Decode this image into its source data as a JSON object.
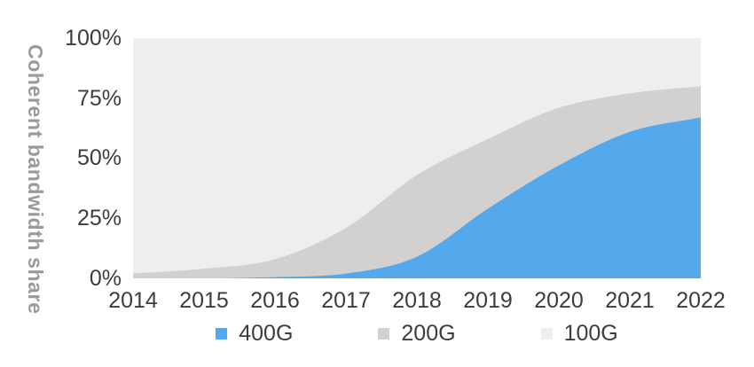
{
  "chart_data": {
    "type": "area",
    "stacked": true,
    "percent_stacked": true,
    "title": "",
    "xlabel": "",
    "ylabel": "Coherent bandwidth share",
    "categories": [
      "2014",
      "2015",
      "2016",
      "2017",
      "2018",
      "2019",
      "2020",
      "2021",
      "2022"
    ],
    "y_tick_labels": [
      "100%",
      "75%",
      "50%",
      "25%",
      "0%"
    ],
    "ylim": [
      0,
      100
    ],
    "grid": false,
    "legend_position": "bottom",
    "series": [
      {
        "name": "400G",
        "color": "#54a8ec",
        "values": [
          0,
          0,
          0.5,
          2,
          9,
          29,
          47,
          61,
          67
        ]
      },
      {
        "name": "200G",
        "color": "#d2d1cf",
        "values": [
          2,
          4,
          7.5,
          19,
          34,
          29,
          24,
          16,
          13
        ]
      },
      {
        "name": "100G",
        "color": "#eeeeec",
        "values": [
          98,
          96,
          92,
          79,
          57,
          42,
          29,
          23,
          20
        ]
      }
    ],
    "colors": {
      "axis_text": "#3d3d3d",
      "ylabel_text": "#9a9a9a",
      "background": "#ffffff"
    }
  }
}
